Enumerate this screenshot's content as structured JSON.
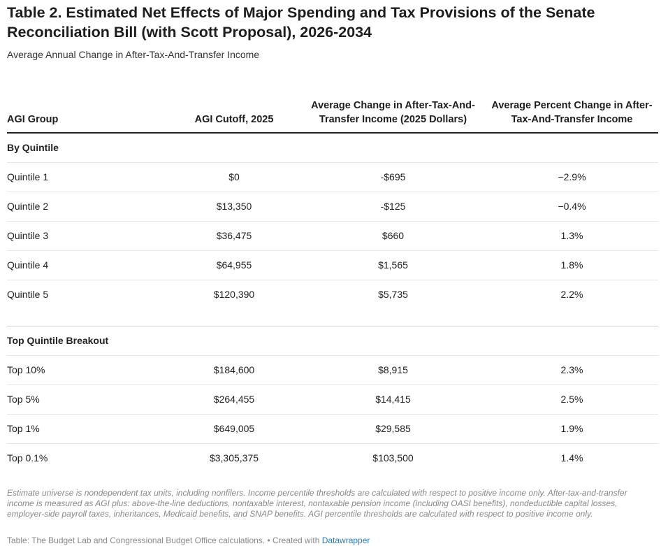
{
  "title": "Table 2. Estimated Net Effects of Major Spending and Tax Provisions of the Senate Reconciliation Bill (with Scott Proposal), 2026-2034",
  "subtitle": "Average Annual Change in After-Tax-And-Transfer Income",
  "chart_data": {
    "type": "table",
    "columns": [
      "AGI Group",
      "AGI Cutoff, 2025",
      "Average Change in After-Tax-And-Transfer Income (2025 Dollars)",
      "Average Percent Change in After-Tax-And-Transfer Income"
    ],
    "groups": [
      {
        "label": "By Quintile",
        "rows": [
          [
            "Quintile 1",
            "$0",
            "-$695",
            "−2.9%"
          ],
          [
            "Quintile 2",
            "$13,350",
            "-$125",
            "−0.4%"
          ],
          [
            "Quintile 3",
            "$36,475",
            "$660",
            "1.3%"
          ],
          [
            "Quintile 4",
            "$64,955",
            "$1,565",
            "1.8%"
          ],
          [
            "Quintile 5",
            "$120,390",
            "$5,735",
            "2.2%"
          ]
        ]
      },
      {
        "label": "Top Quintile Breakout",
        "rows": [
          [
            "Top 10%",
            "$184,600",
            "$8,915",
            "2.3%"
          ],
          [
            "Top 5%",
            "$264,455",
            "$14,415",
            "2.5%"
          ],
          [
            "Top 1%",
            "$649,005",
            "$29,585",
            "1.9%"
          ],
          [
            "Top 0.1%",
            "$3,305,375",
            "$103,500",
            "1.4%"
          ]
        ]
      }
    ]
  },
  "notes": "Estimate universe is nondependent tax units, including nonfilers. Income percentile thresholds are calculated with respect to positive income only. After-tax-and-transfer income is measured as AGI plus: above-the-line deductions, nontaxable interest, nontaxable pension income (including OASI benefits), nondeductible capital losses, employer-side payroll taxes, inheritances, Medicaid benefits, and SNAP benefits. AGI percentile thresholds are calculated with respect to positive income only.",
  "source": {
    "text": "Table: The Budget Lab and Congressional Budget Office calculations. • Created with ",
    "link": "Datawrapper"
  }
}
